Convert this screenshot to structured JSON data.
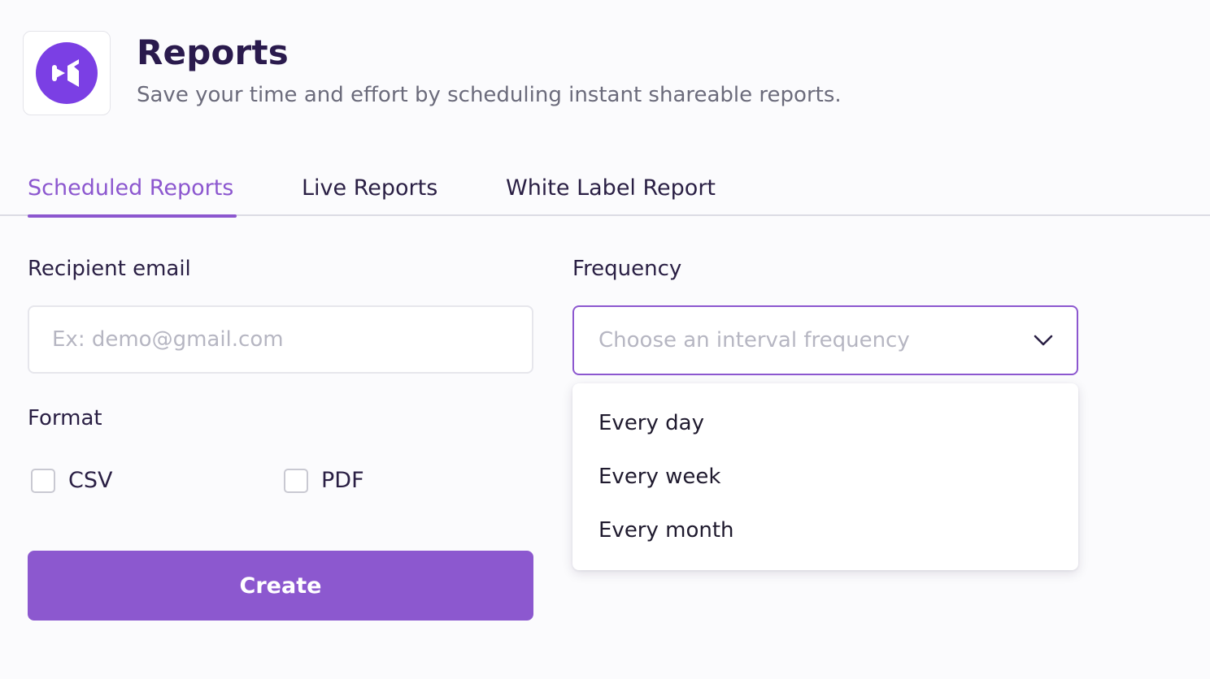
{
  "header": {
    "logo_icon": "brand-logo-icon",
    "title": "Reports",
    "subtitle": "Save your time and effort by scheduling instant shareable reports."
  },
  "tabs": [
    {
      "label": "Scheduled Reports",
      "active": true
    },
    {
      "label": "Live Reports",
      "active": false
    },
    {
      "label": "White Label Report",
      "active": false
    }
  ],
  "form": {
    "email_label": "Recipient email",
    "email_placeholder": "Ex: demo@gmail.com",
    "email_value": "",
    "frequency_label": "Frequency",
    "frequency_placeholder": "Choose an interval frequency",
    "frequency_icon": "chevron-down-icon",
    "frequency_options": [
      "Every day",
      "Every week",
      "Every month"
    ],
    "format_label": "Format",
    "formats": [
      {
        "label": "CSV",
        "checked": false
      },
      {
        "label": "PDF",
        "checked": false
      }
    ],
    "create_label": "Create"
  },
  "colors": {
    "accent": "#8c57cf",
    "title": "#2a1a4d",
    "subtitle": "#6b6b7b",
    "placeholder": "#b6b6c2",
    "logo": "#7b3fe4"
  }
}
